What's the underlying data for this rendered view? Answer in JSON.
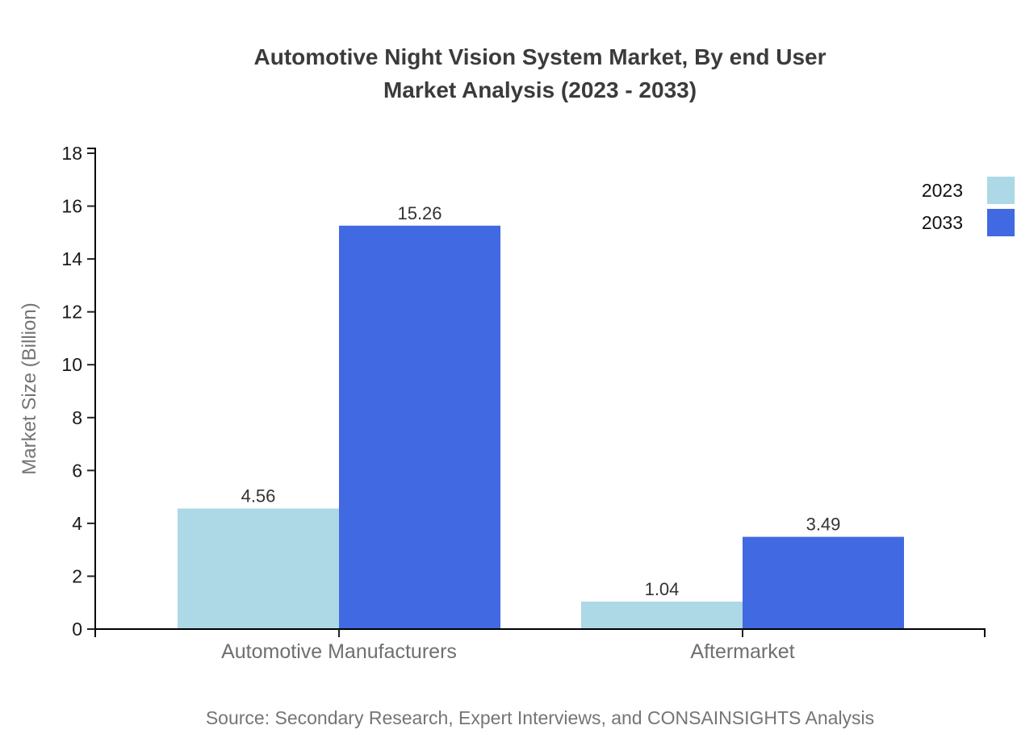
{
  "chart_data": {
    "type": "bar",
    "title": "Automotive Night Vision System Market, By end User Market Analysis (2023 - 2033)",
    "title_lines": [
      "Automotive Night Vision System Market, By end User",
      "Market Analysis (2023 - 2033)"
    ],
    "categories": [
      "Automotive Manufacturers",
      "Aftermarket"
    ],
    "series": [
      {
        "name": "2023",
        "color": "#ADD8E6",
        "values": [
          4.56,
          1.04
        ]
      },
      {
        "name": "2033",
        "color": "#4169E1",
        "values": [
          15.26,
          3.49
        ]
      }
    ],
    "xlabel": "",
    "ylabel": "Market Size (Billion)",
    "ylim": [
      0,
      18
    ],
    "yticks": [
      0,
      2,
      4,
      6,
      8,
      10,
      12,
      14,
      16,
      18
    ],
    "grid": false,
    "legend_position": "top-right",
    "value_labels_shown": true,
    "source_note": "Source: Secondary Research, Expert Interviews, and CONSAINSIGHTS Analysis",
    "colors": {
      "axis": "#000000",
      "tick": "#222222",
      "title_text": "#3b3b3b",
      "tick_label_text": "#1a1a1a",
      "category_label_text": "#6f6f6f",
      "muted_text": "#757575",
      "value_label_text": "#333333"
    }
  }
}
